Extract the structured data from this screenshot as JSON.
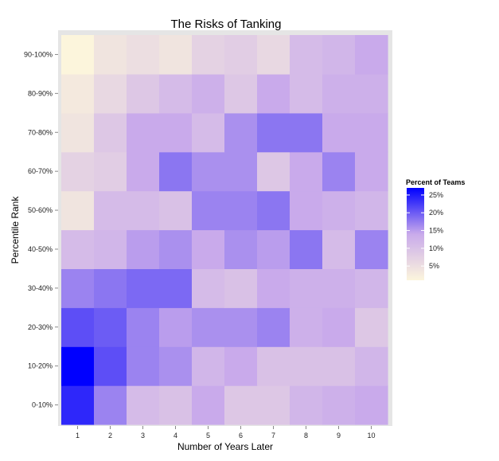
{
  "chart_data": {
    "type": "heatmap",
    "title": "The Risks of Tanking",
    "xlabel": "Number of Years Later",
    "ylabel": "Percentile Rank",
    "x_categories": [
      "1",
      "2",
      "3",
      "4",
      "5",
      "6",
      "7",
      "8",
      "9",
      "10"
    ],
    "y_categories": [
      "0-10%",
      "10-20%",
      "20-30%",
      "30-40%",
      "40-50%",
      "50-60%",
      "60-70%",
      "70-80%",
      "80-90%",
      "90-100%"
    ],
    "values": [
      [
        24,
        17,
        11,
        10,
        14,
        9,
        9,
        12,
        13,
        14
      ],
      [
        27,
        21,
        17,
        16,
        12,
        14,
        10,
        10,
        10,
        12
      ],
      [
        21,
        20,
        17,
        15,
        16,
        16,
        17,
        13,
        14,
        9
      ],
      [
        17,
        18,
        19,
        19,
        11,
        10,
        14,
        13,
        13,
        12
      ],
      [
        11,
        12,
        15,
        16,
        14,
        16,
        15,
        18,
        11,
        17
      ],
      [
        4,
        11,
        11,
        10,
        17,
        17,
        18,
        14,
        13,
        12
      ],
      [
        7,
        8,
        14,
        18,
        16,
        16,
        9,
        14,
        17,
        14
      ],
      [
        4,
        9,
        14,
        14,
        11,
        16,
        18,
        18,
        14,
        14
      ],
      [
        3,
        6,
        9,
        11,
        13,
        9,
        14,
        11,
        13,
        13
      ],
      [
        1,
        4,
        5,
        4,
        7,
        8,
        6,
        11,
        12,
        14
      ]
    ],
    "color_scale": {
      "low": "#fcf5dc",
      "mid": "#c9aaeb",
      "high": "#0000ff",
      "min": 1,
      "max": 27
    },
    "legend": {
      "title": "Percent of Teams",
      "ticks": [
        {
          "value": 25,
          "label": "25%"
        },
        {
          "value": 20,
          "label": "20%"
        },
        {
          "value": 15,
          "label": "15%"
        },
        {
          "value": 10,
          "label": "10%"
        },
        {
          "value": 5,
          "label": "5%"
        }
      ],
      "placement": "right"
    },
    "panel_background": "#e5e5e5",
    "grid": true
  }
}
